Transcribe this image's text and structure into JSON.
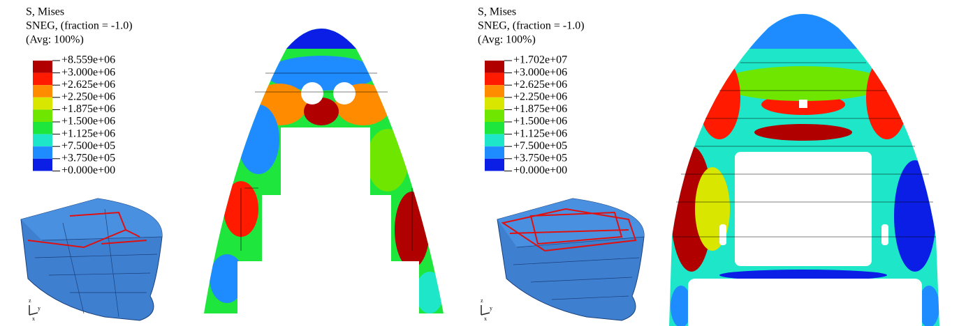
{
  "panels": [
    {
      "legend": {
        "lines": [
          "S, Mises",
          "SNEG, (fraction = -1.0)",
          "(Avg: 100%)"
        ],
        "labels": [
          "+8.559e+06",
          "+3.000e+06",
          "+2.625e+06",
          "+2.250e+06",
          "+1.875e+06",
          "+1.500e+06",
          "+1.125e+06",
          "+7.500e+05",
          "+3.750e+05",
          "+0.000e+00"
        ],
        "colors": [
          "#b00000",
          "#ff1a00",
          "#ff8c00",
          "#d8e600",
          "#6ee600",
          "#1ee63c",
          "#1ee6c8",
          "#1e8cff",
          "#0a1ee6"
        ]
      },
      "triad": [
        "z",
        "y",
        "x"
      ]
    },
    {
      "legend": {
        "lines": [
          "S, Mises",
          "SNEG, (fraction = -1.0)",
          "(Avg: 100%)"
        ],
        "labels": [
          "+1.702e+07",
          "+3.000e+06",
          "+2.625e+06",
          "+2.250e+06",
          "+1.875e+06",
          "+1.500e+06",
          "+1.125e+06",
          "+7.500e+05",
          "+3.750e+05",
          "+0.000e+00"
        ],
        "colors": [
          "#b00000",
          "#ff1a00",
          "#ff8c00",
          "#d8e600",
          "#6ee600",
          "#1ee63c",
          "#1ee6c8",
          "#1e8cff",
          "#0a1ee6"
        ]
      },
      "triad": [
        "z",
        "y",
        "x"
      ]
    }
  ]
}
